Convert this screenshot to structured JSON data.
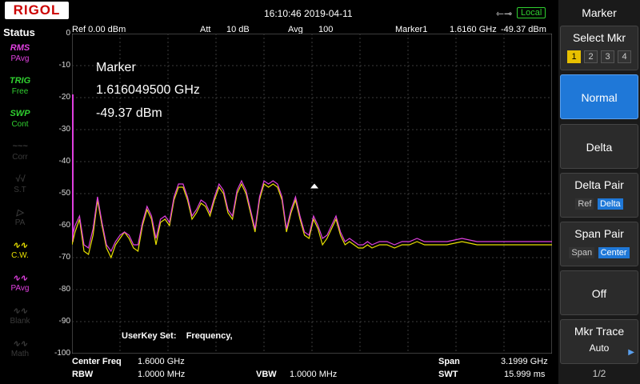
{
  "top": {
    "logo": "RIGOL",
    "datetime": "16:10:46 2019-04-11",
    "usb_icon": "usb-icon",
    "local": "Local"
  },
  "status": {
    "title": "Status",
    "items": [
      {
        "sym": "RMS",
        "label": "PAvg",
        "color": "#e040e0"
      },
      {
        "sym": "TRIG",
        "label": "Free",
        "color": "#30d030"
      },
      {
        "sym": "SWP",
        "label": "Cont",
        "color": "#30d030"
      },
      {
        "sym": "~~~",
        "label": "Corr",
        "color": "#3a3a3a"
      },
      {
        "sym": "√√",
        "label": "S.T",
        "color": "#3a3a3a"
      },
      {
        "sym": "▷",
        "label": "PA",
        "color": "#3a3a3a"
      },
      {
        "sym": "∿∿",
        "label": "C.W.",
        "color": "#e8e000"
      },
      {
        "sym": "∿∿",
        "label": "PAvg",
        "color": "#e040e0"
      },
      {
        "sym": "∿∿",
        "label": "Blank",
        "color": "#3a3a3a"
      },
      {
        "sym": "∿∿",
        "label": "Math",
        "color": "#3a3a3a"
      }
    ]
  },
  "header": {
    "ref": "Ref  0.00 dBm",
    "att_label": "Att",
    "att_value": "10 dB",
    "avg_label": "Avg",
    "avg_value": "100",
    "marker_label": "Marker1",
    "marker_freq": "1.6160 GHz",
    "marker_level": "-49.37 dBm"
  },
  "marker_box": {
    "title": "Marker",
    "freq": "1.616049500 GHz",
    "level": "-49.37 dBm"
  },
  "userkey": "UserKey Set:    Frequency,",
  "bottom": {
    "center_label": "Center Freq",
    "center_value": "1.6000 GHz",
    "span_label": "Span",
    "span_value": "3.1999 GHz",
    "rbw_label": "RBW",
    "rbw_value": "1.0000 MHz",
    "vbw_label": "VBW",
    "vbw_value": "1.0000 MHz",
    "swt_label": "SWT",
    "swt_value": "15.999 ms"
  },
  "menu": {
    "title": "Marker",
    "select_mkr": "Select Mkr",
    "mkr_numbers": [
      "1",
      "2",
      "3",
      "4"
    ],
    "normal": "Normal",
    "delta": "Delta",
    "delta_pair": "Delta Pair",
    "delta_pair_ref": "Ref",
    "delta_pair_delta": "Delta",
    "span_pair": "Span Pair",
    "span_pair_span": "Span",
    "span_pair_center": "Center",
    "off": "Off",
    "mkr_trace": "Mkr Trace",
    "mkr_trace_value": "Auto",
    "page": "1/2"
  },
  "chart_data": {
    "type": "line",
    "ylim": [
      -100,
      0
    ],
    "xlim": [
      0.0,
      3.1999
    ],
    "x_unit": "GHz",
    "y_unit": "dBm",
    "y_ticks": [
      "0",
      "-10",
      "-20",
      "-30",
      "-40",
      "-50",
      "-60",
      "-70",
      "-80",
      "-90",
      "-100"
    ],
    "grid": true,
    "series": [
      {
        "color": "#e8e000",
        "x": [
          0.0,
          0.02,
          0.05,
          0.08,
          0.11,
          0.14,
          0.17,
          0.2,
          0.23,
          0.26,
          0.29,
          0.32,
          0.35,
          0.38,
          0.41,
          0.44,
          0.47,
          0.5,
          0.53,
          0.56,
          0.59,
          0.62,
          0.65,
          0.68,
          0.71,
          0.74,
          0.77,
          0.8,
          0.83,
          0.86,
          0.89,
          0.92,
          0.95,
          0.98,
          1.01,
          1.04,
          1.07,
          1.1,
          1.13,
          1.16,
          1.19,
          1.22,
          1.25,
          1.28,
          1.31,
          1.34,
          1.37,
          1.4,
          1.43,
          1.46,
          1.49,
          1.52,
          1.55,
          1.58,
          1.61,
          1.64,
          1.67,
          1.7,
          1.73,
          1.76,
          1.79,
          1.82,
          1.85,
          1.88,
          1.91,
          1.94,
          1.97,
          2.0,
          2.05,
          2.1,
          2.15,
          2.2,
          2.25,
          2.3,
          2.35,
          2.4,
          2.5,
          2.6,
          2.7,
          2.8,
          2.9,
          3.0,
          3.1,
          3.1999
        ],
        "values": [
          -66,
          -62,
          -58,
          -68,
          -69,
          -63,
          -52,
          -60,
          -67,
          -70,
          -66,
          -64,
          -62,
          -64,
          -67,
          -68,
          -60,
          -55,
          -58,
          -66,
          -59,
          -58,
          -60,
          -52,
          -48,
          -48,
          -52,
          -58,
          -56,
          -53,
          -54,
          -57,
          -52,
          -48,
          -50,
          -56,
          -58,
          -50,
          -47,
          -50,
          -56,
          -62,
          -52,
          -47,
          -48,
          -47,
          -48,
          -52,
          -62,
          -56,
          -52,
          -58,
          -63,
          -64,
          -58,
          -61,
          -66,
          -64,
          -61,
          -58,
          -63,
          -66,
          -65,
          -66,
          -67,
          -67,
          -66,
          -67,
          -66,
          -66,
          -67,
          -66,
          -66,
          -65,
          -66,
          -66,
          -66,
          -65,
          -66,
          -66,
          -66,
          -66,
          -66,
          -66
        ]
      },
      {
        "color": "#e040e0",
        "x": [
          0.0,
          0.02,
          0.05,
          0.08,
          0.11,
          0.14,
          0.17,
          0.2,
          0.23,
          0.26,
          0.29,
          0.32,
          0.35,
          0.38,
          0.41,
          0.44,
          0.47,
          0.5,
          0.53,
          0.56,
          0.59,
          0.62,
          0.65,
          0.68,
          0.71,
          0.74,
          0.77,
          0.8,
          0.83,
          0.86,
          0.89,
          0.92,
          0.95,
          0.98,
          1.01,
          1.04,
          1.07,
          1.1,
          1.13,
          1.16,
          1.19,
          1.22,
          1.25,
          1.28,
          1.31,
          1.34,
          1.37,
          1.4,
          1.43,
          1.46,
          1.49,
          1.52,
          1.55,
          1.58,
          1.61,
          1.64,
          1.67,
          1.7,
          1.73,
          1.76,
          1.79,
          1.82,
          1.85,
          1.88,
          1.91,
          1.94,
          1.97,
          2.0,
          2.05,
          2.1,
          2.15,
          2.2,
          2.25,
          2.3,
          2.35,
          2.4,
          2.5,
          2.6,
          2.7,
          2.8,
          2.9,
          3.0,
          3.1,
          3.1999
        ],
        "values": [
          -64,
          -60,
          -57,
          -66,
          -67,
          -61,
          -51,
          -59,
          -66,
          -68,
          -65,
          -63,
          -62,
          -63,
          -66,
          -66,
          -59,
          -54,
          -57,
          -64,
          -58,
          -57,
          -59,
          -51,
          -47,
          -47,
          -51,
          -57,
          -55,
          -52,
          -53,
          -56,
          -51,
          -47,
          -49,
          -55,
          -57,
          -49,
          -46,
          -49,
          -55,
          -61,
          -51,
          -46,
          -47,
          -46,
          -47,
          -51,
          -61,
          -55,
          -51,
          -57,
          -62,
          -63,
          -57,
          -60,
          -64,
          -63,
          -60,
          -57,
          -62,
          -65,
          -64,
          -65,
          -66,
          -66,
          -65,
          -66,
          -65,
          -65,
          -66,
          -65,
          -65,
          -64,
          -65,
          -65,
          -65,
          -64,
          -65,
          -65,
          -65,
          -65,
          -65,
          -65
        ]
      }
    ],
    "vertical_marker_color": "#e040e0"
  }
}
